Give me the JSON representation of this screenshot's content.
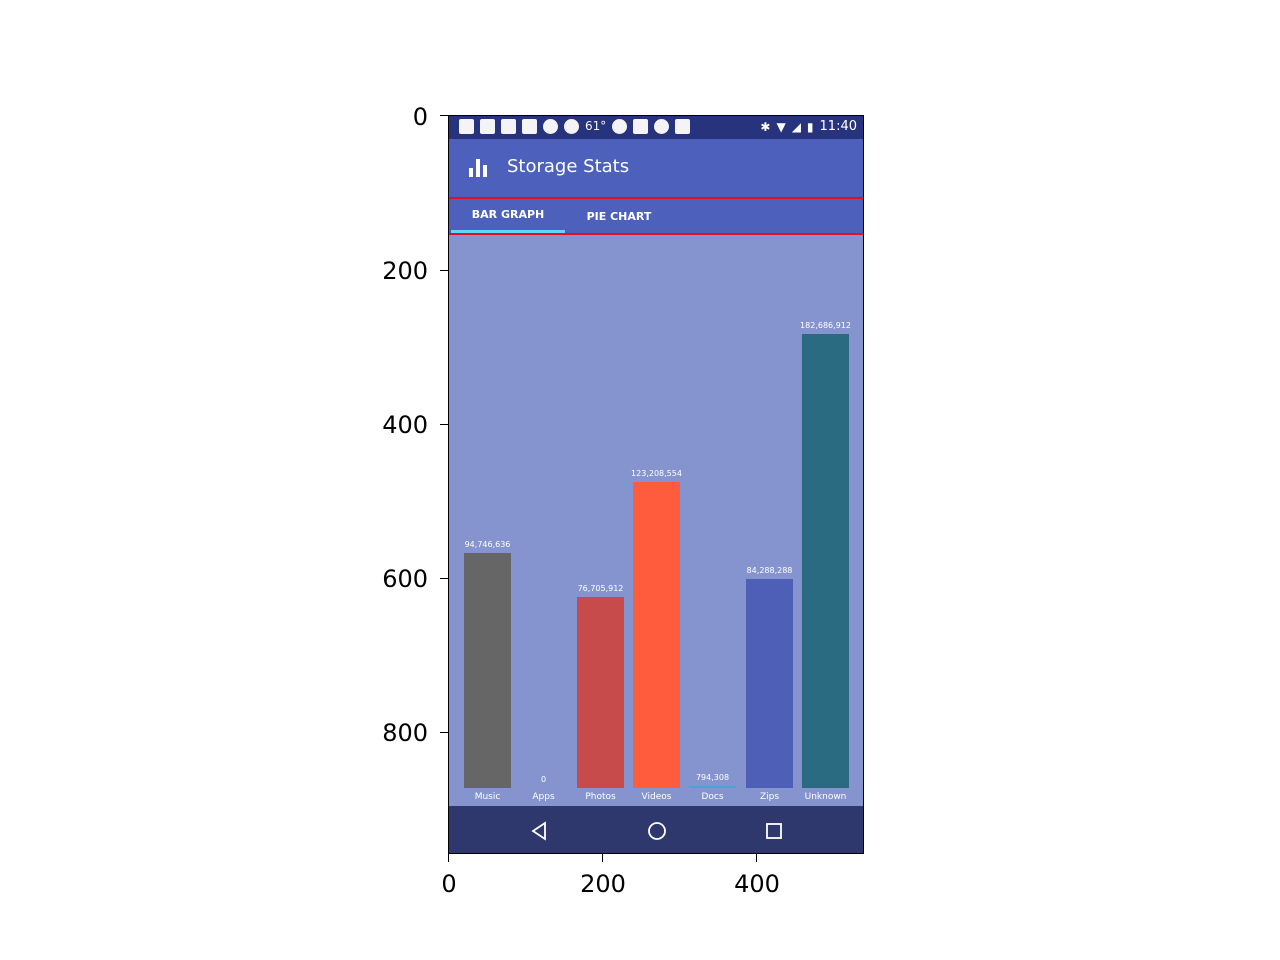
{
  "figure": {
    "y_ticks": [
      "0",
      "200",
      "400",
      "600",
      "800"
    ],
    "x_ticks": [
      "0",
      "200",
      "400"
    ]
  },
  "status_bar": {
    "temperature": "61°",
    "time": "11:40",
    "icons": [
      "messenger-icon",
      "facebook-icon",
      "facebook-icon",
      "facebook-icon",
      "hands-icon",
      "heart-icon",
      "weather-icon",
      "wrench-icon",
      "game-icon",
      "download-icon",
      "bluetooth-icon",
      "wifi-icon",
      "signal-icon",
      "battery-icon"
    ]
  },
  "app_bar": {
    "icon": "bar-chart-icon",
    "title": "Storage Stats"
  },
  "tabs": [
    {
      "label": "BAR GRAPH",
      "selected": true
    },
    {
      "label": "PIE CHART",
      "selected": false
    }
  ],
  "colors": {
    "status_bar": "#28337d",
    "app_bar": "#4d60bb",
    "background": "#8594cf",
    "nav_bar": "#2e386c",
    "tab_indicator": "#62d6f5",
    "highlight_outline": "#e01020"
  },
  "chart_data": {
    "type": "bar",
    "categories": [
      "Music",
      "Apps",
      "Photos",
      "Videos",
      "Docs",
      "Zips",
      "Unknown"
    ],
    "values": [
      94746636,
      0,
      76705912,
      123208554,
      794308,
      84288288,
      182686912
    ],
    "value_labels": [
      "94,746,636",
      "0",
      "76,705,912",
      "123,208,554",
      "794,308",
      "84,288,288",
      "182,686,912"
    ],
    "colors": [
      "#666666",
      "#8594cf",
      "#c84b4b",
      "#ff5c3d",
      "#4aa3d8",
      "#4e5fb8",
      "#2b6b82"
    ],
    "ylim": [
      0,
      182686912
    ]
  },
  "nav_bar": {
    "buttons": [
      "back-icon",
      "home-icon",
      "recents-icon"
    ]
  }
}
